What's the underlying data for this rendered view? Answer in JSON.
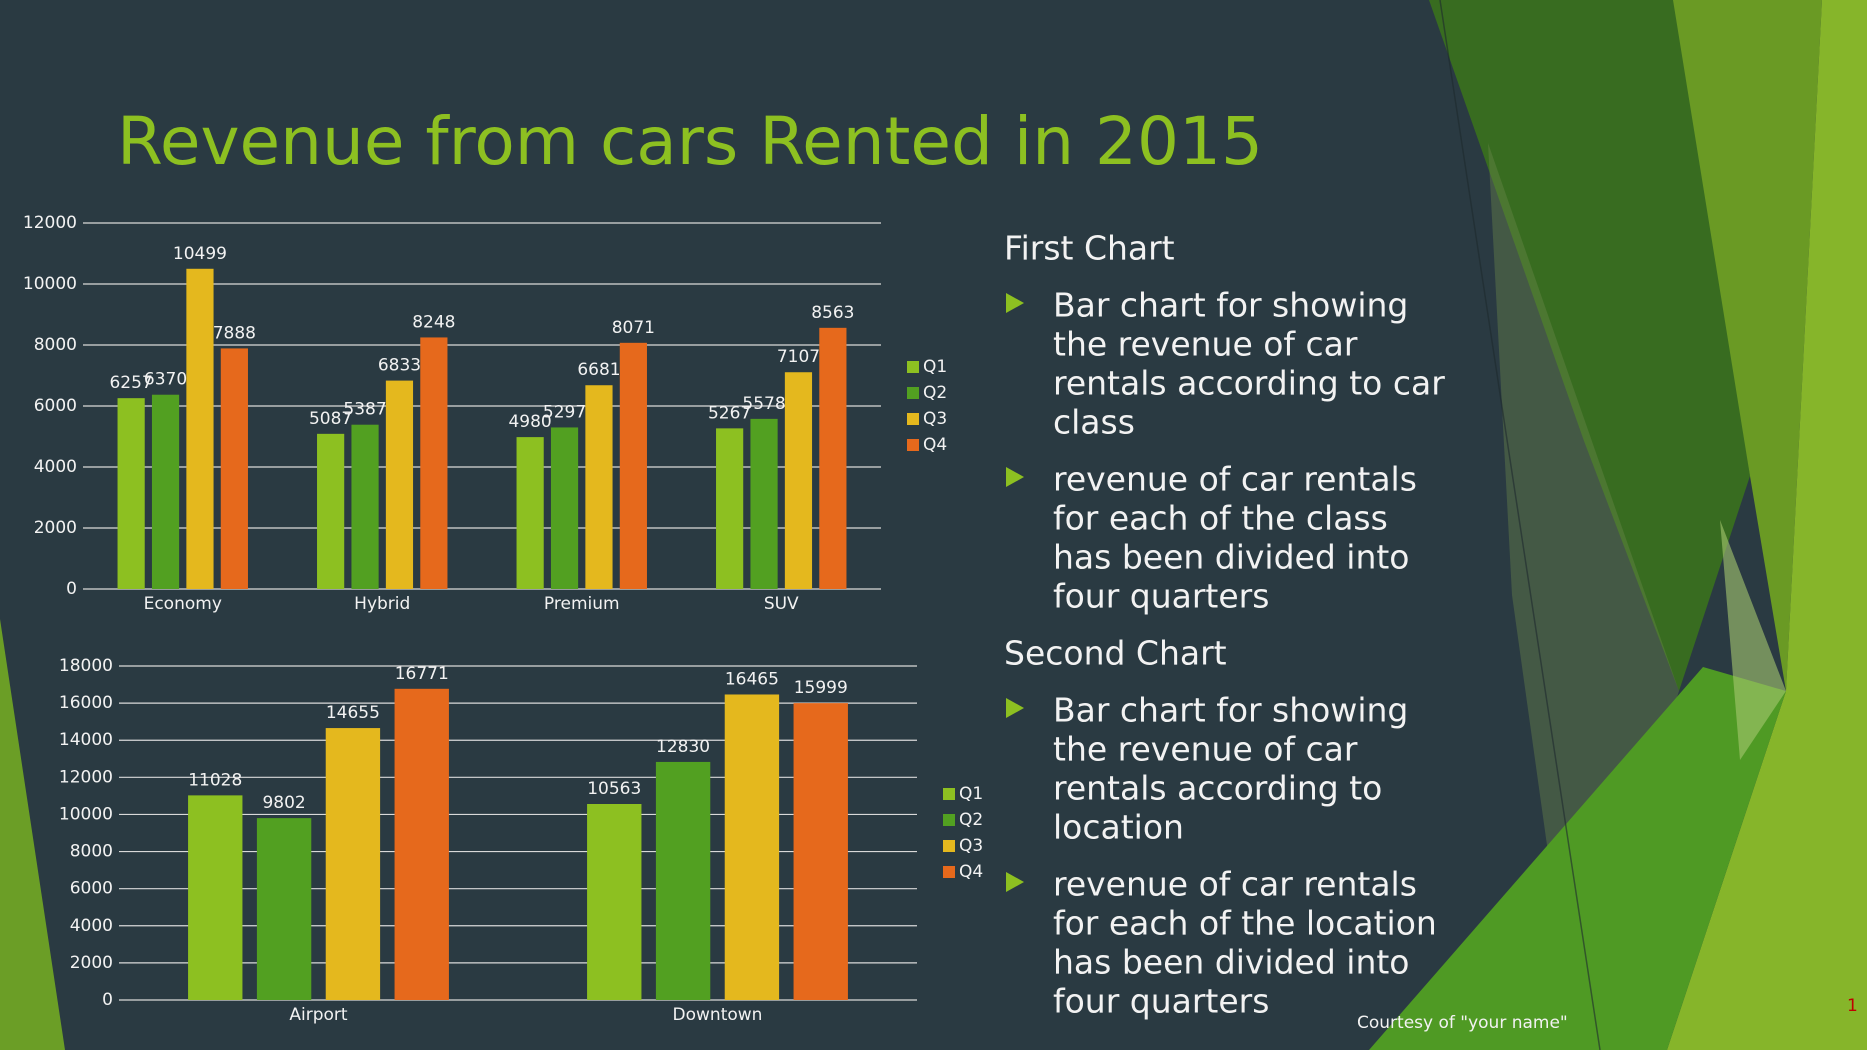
{
  "slide": {
    "title": "Revenue from cars Rented in 2015",
    "sections": [
      {
        "heading": "First Chart",
        "bullets": [
          [
            "Bar chart for showing",
            "the revenue of car",
            "rentals according to car",
            "class"
          ],
          [
            "revenue of car rentals",
            "for each of the class",
            "has been divided into",
            "four quarters"
          ]
        ]
      },
      {
        "heading": "Second Chart",
        "bullets": [
          [
            "Bar chart for showing",
            "the revenue of car",
            "rentals according to",
            "location"
          ],
          [
            "revenue of car rentals",
            "for each of the location",
            "has been divided into",
            "four quarters"
          ]
        ]
      }
    ],
    "footer": "Courtesy of \"your name\"",
    "page_number": "1"
  },
  "chart_data": [
    {
      "type": "bar",
      "categories": [
        "Economy",
        "Hybrid",
        "Premium",
        "SUV"
      ],
      "series": [
        {
          "name": "Q1",
          "color": "#8dc021",
          "values": [
            6257,
            5087,
            4980,
            5267
          ]
        },
        {
          "name": "Q2",
          "color": "#52a021",
          "values": [
            6370,
            5387,
            5297,
            5578
          ]
        },
        {
          "name": "Q3",
          "color": "#e4b81e",
          "values": [
            10499,
            6833,
            6681,
            7107
          ]
        },
        {
          "name": "Q4",
          "color": "#e6691c",
          "values": [
            7888,
            8248,
            8071,
            8563
          ]
        }
      ],
      "ylim": [
        0,
        12000
      ],
      "yticks": [
        0,
        2000,
        4000,
        6000,
        8000,
        10000,
        12000
      ],
      "grid": true,
      "legend": "right"
    },
    {
      "type": "bar",
      "categories": [
        "Airport",
        "Downtown"
      ],
      "series": [
        {
          "name": "Q1",
          "color": "#8dc021",
          "values": [
            11028,
            10563
          ]
        },
        {
          "name": "Q2",
          "color": "#52a021",
          "values": [
            9802,
            12830
          ]
        },
        {
          "name": "Q3",
          "color": "#e4b81e",
          "values": [
            14655,
            16465
          ]
        },
        {
          "name": "Q4",
          "color": "#e6691c",
          "values": [
            16771,
            15999
          ]
        }
      ],
      "ylim": [
        0,
        18000
      ],
      "yticks": [
        0,
        2000,
        4000,
        6000,
        8000,
        10000,
        12000,
        14000,
        16000,
        18000
      ],
      "grid": true,
      "legend": "right"
    }
  ]
}
